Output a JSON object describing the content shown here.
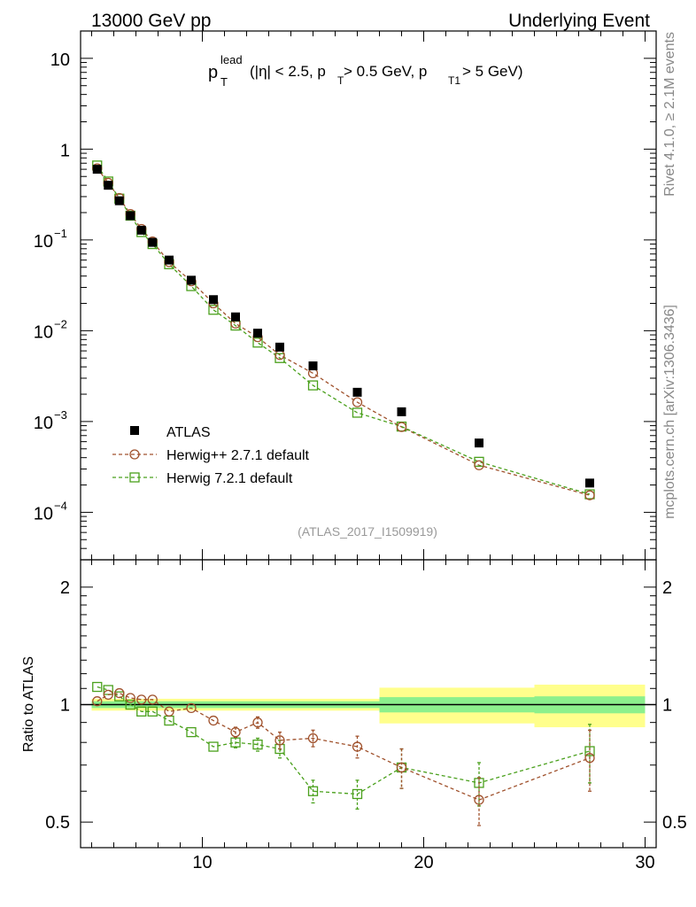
{
  "header": {
    "left": "13000 GeV pp",
    "right": "Underlying Event"
  },
  "side_labels": {
    "rivet": "Rivet 4.1.0, ≥ 2.1M events",
    "mcplots": "mcplots.cern.ch [arXiv:1306.3436]"
  },
  "plot_title": {
    "p": "p",
    "lead": "lead",
    "T": "T",
    "rest1": " (|η| < 2.5, p",
    "rest2": " > 0.5 GeV, p",
    "T1": "T1",
    "rest3": " > 5 GeV)"
  },
  "analysis_id": "(ATLAS_2017_I1509919)",
  "legend": {
    "atlas": "ATLAS",
    "herwigpp": "Herwig++ 2.7.1 default",
    "herwig7": "Herwig 7.2.1 default"
  },
  "colors": {
    "data": "#000000",
    "herwigpp": "#a0522d",
    "herwig7": "#4aa01c",
    "band_outer": "#ffff8c",
    "band_inner": "#8cf08c"
  },
  "main_yticks": [
    {
      "base": "10",
      "exp": "−4"
    },
    {
      "base": "10",
      "exp": "−3"
    },
    {
      "base": "10",
      "exp": "−2"
    },
    {
      "base": "10",
      "exp": "−1"
    },
    {
      "base": "1",
      "exp": ""
    },
    {
      "base": "10",
      "exp": ""
    }
  ],
  "ratio_ylabel": "Ratio to ATLAS",
  "ratio_yticks": [
    "0.5",
    "1",
    "2"
  ],
  "xticks": [
    "10",
    "20",
    "30"
  ],
  "chart_data": {
    "type": "scatter",
    "title": "p_T^lead (|η| < 2.5, p_T > 0.5 GeV, p_T1 > 5 GeV)",
    "xlabel": "",
    "ylabel": "",
    "xlim": [
      4.5,
      30.5
    ],
    "ylim": [
      3e-05,
      20
    ],
    "yscale": "log",
    "ratio_ylim": [
      0.43,
      2.35
    ],
    "x": [
      5.25,
      5.75,
      6.25,
      6.75,
      7.25,
      7.75,
      8.5,
      9.5,
      10.5,
      11.5,
      12.5,
      13.5,
      15,
      17,
      19,
      22.5,
      27.5
    ],
    "x_err": [
      0.25,
      0.25,
      0.25,
      0.25,
      0.25,
      0.25,
      0.5,
      0.5,
      0.5,
      0.5,
      0.5,
      0.5,
      1,
      1,
      1,
      2.5,
      2.5
    ],
    "series": [
      {
        "name": "ATLAS",
        "values": [
          0.6,
          0.4,
          0.27,
          0.185,
          0.128,
          0.094,
          0.06,
          0.036,
          0.022,
          0.0142,
          0.0094,
          0.0066,
          0.0041,
          0.0021,
          0.00128,
          0.00058,
          0.00021
        ]
      },
      {
        "name": "Herwig++ 2.7.1 default",
        "values": [
          0.615,
          0.425,
          0.29,
          0.193,
          0.132,
          0.096,
          0.057,
          0.035,
          0.02,
          0.012,
          0.0085,
          0.0054,
          0.0034,
          0.00163,
          0.00087,
          0.00033,
          0.000154
        ],
        "ratio": [
          1.02,
          1.06,
          1.07,
          1.04,
          1.03,
          1.03,
          0.96,
          0.98,
          0.91,
          0.85,
          0.9,
          0.81,
          0.82,
          0.78,
          0.69,
          0.57,
          0.73
        ],
        "ratio_err": [
          0.01,
          0.01,
          0.01,
          0.01,
          0.01,
          0.01,
          0.015,
          0.015,
          0.02,
          0.025,
          0.03,
          0.04,
          0.04,
          0.05,
          0.08,
          0.08,
          0.13
        ]
      },
      {
        "name": "Herwig 7.2.1 default",
        "values": [
          0.66,
          0.44,
          0.285,
          0.185,
          0.122,
          0.09,
          0.054,
          0.031,
          0.017,
          0.0114,
          0.0074,
          0.005,
          0.0025,
          0.00125,
          0.00088,
          0.00036,
          0.000158
        ],
        "ratio": [
          1.11,
          1.09,
          1.05,
          1.0,
          0.96,
          0.96,
          0.91,
          0.85,
          0.78,
          0.8,
          0.79,
          0.77,
          0.6,
          0.59,
          0.69,
          0.63,
          0.76
        ],
        "ratio_err": [
          0.01,
          0.01,
          0.01,
          0.01,
          0.01,
          0.01,
          0.015,
          0.015,
          0.02,
          0.025,
          0.03,
          0.04,
          0.04,
          0.05,
          0.08,
          0.08,
          0.13
        ]
      }
    ],
    "ratio_bands": [
      {
        "x0": 5,
        "x1": 18,
        "inner": 0.02,
        "outer": 0.035
      },
      {
        "x0": 18,
        "x1": 25,
        "inner": 0.045,
        "outer": 0.105
      },
      {
        "x0": 25,
        "x1": 30,
        "inner": 0.05,
        "outer": 0.125
      }
    ]
  }
}
